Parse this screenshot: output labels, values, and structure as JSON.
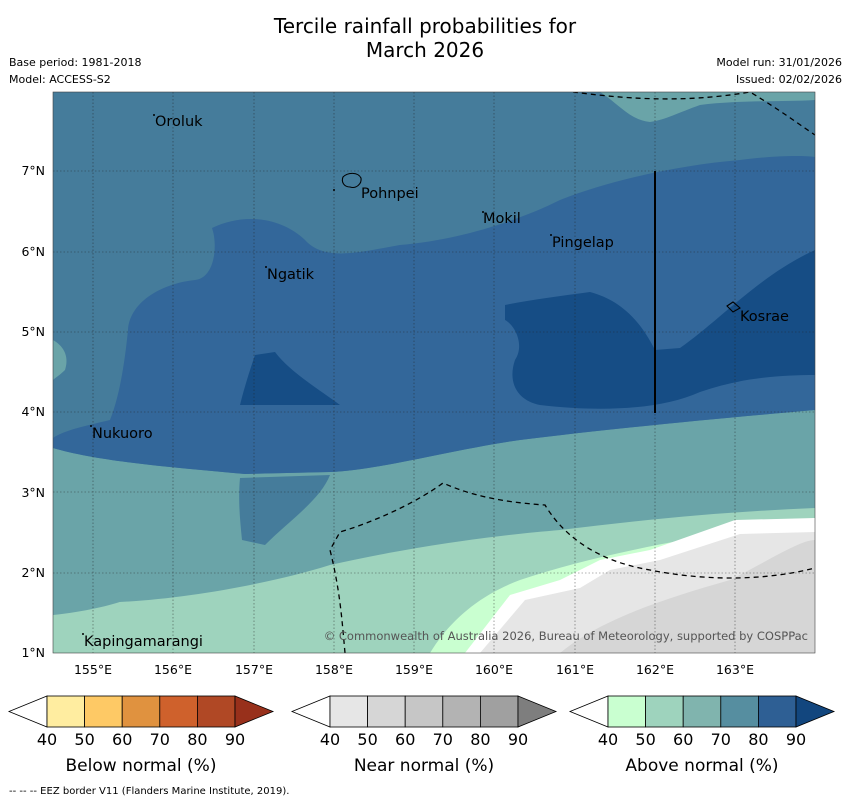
{
  "header": {
    "title_line1": "Tercile rainfall probabilities for",
    "title_line2": "March 2026",
    "base_period": "Base period: 1981-2018",
    "model": "Model: ACCESS-S2",
    "model_run": "Model run: 31/01/2026",
    "issued": "Issued: 02/02/2026"
  },
  "map": {
    "lon_ticks": [
      "155°E",
      "156°E",
      "157°E",
      "158°E",
      "159°E",
      "160°E",
      "161°E",
      "162°E",
      "163°E"
    ],
    "lat_ticks": [
      "1°N",
      "2°N",
      "3°N",
      "4°N",
      "5°N",
      "6°N",
      "7°N"
    ],
    "places": [
      "Oroluk",
      "Pohnpei",
      "Mokil",
      "Pingelap",
      "Ngatik",
      "Kosrae",
      "Nukuoro",
      "Kapingamarangi"
    ],
    "copyright": "© Commonwealth of Australia 2026, Bureau of Meteorology, supported by COSPPac"
  },
  "legend": {
    "colors": {
      "below": [
        "#ffffff",
        "#ffeda0",
        "#fec965",
        "#e0923f",
        "#cf612c",
        "#b04825",
        "#98301b"
      ],
      "near": [
        "#ffffff",
        "#e6e6e6",
        "#d6d6d6",
        "#c6c6c6",
        "#b3b3b3",
        "#a0a0a0",
        "#7e7e7e"
      ],
      "above": [
        "#ffffff",
        "#c9ffd0",
        "#9ed3bd",
        "#80b4ae",
        "#568ea0",
        "#2e5f94",
        "#12467e"
      ]
    },
    "tick_labels": [
      "40",
      "50",
      "60",
      "70",
      "80",
      "90"
    ],
    "below_title": "Below normal (%)",
    "near_title": "Near normal (%)",
    "above_title": "Above normal (%)"
  },
  "footer": {
    "eez_note": "--  --  -- EEZ border V11 (Flanders Marine Institute, 2019)."
  }
}
